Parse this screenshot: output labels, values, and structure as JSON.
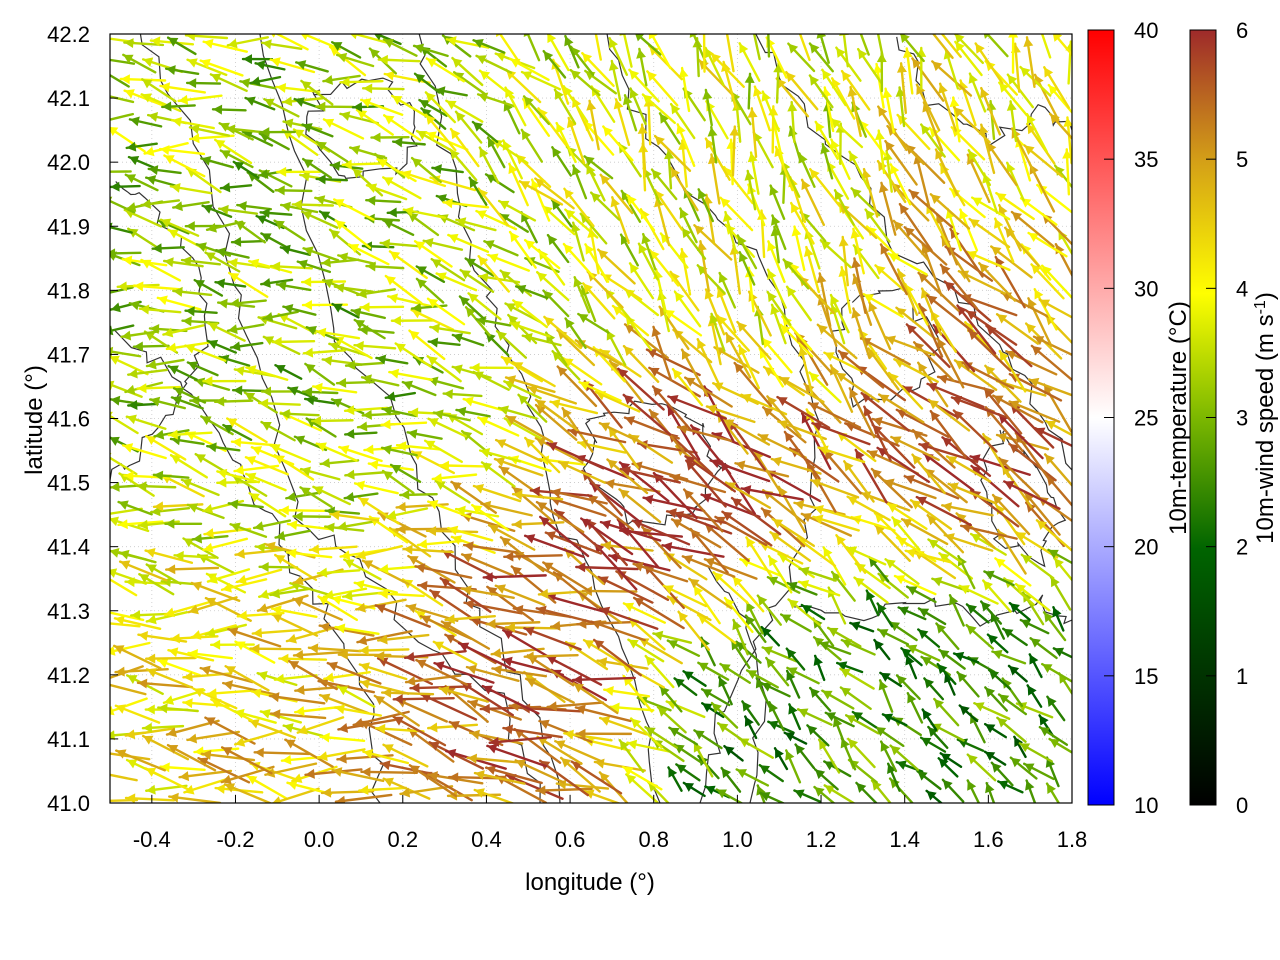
{
  "chart_data": {
    "type": "vector-field",
    "xlabel": "longitude (°)",
    "ylabel": "latitude (°)",
    "xlim": [
      -0.5,
      1.8
    ],
    "ylim": [
      41.0,
      42.2
    ],
    "x_ticks": [
      "-0.4",
      "-0.2",
      "0.0",
      "0.2",
      "0.4",
      "0.6",
      "0.8",
      "1.0",
      "1.2",
      "1.4",
      "1.6",
      "1.8"
    ],
    "y_ticks": [
      "41.0",
      "41.1",
      "41.2",
      "41.3",
      "41.4",
      "41.5",
      "41.6",
      "41.7",
      "41.8",
      "41.9",
      "42.0",
      "42.1",
      "42.2"
    ],
    "grid": true,
    "colorbars": [
      {
        "label": "10m-temperature (°C)",
        "range": [
          10,
          40
        ],
        "ticks": [
          "10",
          "15",
          "20",
          "25",
          "30",
          "35",
          "40"
        ],
        "colors": [
          "#0000ff",
          "#ffffff",
          "#ff0000"
        ]
      },
      {
        "label_main": "10m-wind speed (m s",
        "label_sup": "-1",
        "label_end": ")",
        "range": [
          0,
          6
        ],
        "ticks": [
          "0",
          "1",
          "2",
          "3",
          "4",
          "5",
          "6"
        ],
        "colors": [
          "#000000",
          "#006400",
          "#7cb800",
          "#ffff00",
          "#d4a017",
          "#9e2a2a"
        ]
      }
    ],
    "series": [
      {
        "type": "wind-arrows",
        "note_regions": [
          {
            "lon": [
              -0.5,
              0.3
            ],
            "lat": [
              41.0,
              41.4
            ],
            "speed": 4.5,
            "dir_deg": 175
          },
          {
            "lon": [
              0.2,
              0.6
            ],
            "lat": [
              41.1,
              41.4
            ],
            "speed": 5.8,
            "dir_deg": 160
          },
          {
            "lon": [
              0.6,
              1.1
            ],
            "lat": [
              41.4,
              41.65
            ],
            "speed": 5.9,
            "dir_deg": 150
          },
          {
            "lon": [
              1.3,
              1.7
            ],
            "lat": [
              41.5,
              41.95
            ],
            "speed": 5.7,
            "dir_deg": 150
          },
          {
            "lon": [
              1.0,
              1.75
            ],
            "lat": [
              41.0,
              41.3
            ],
            "speed": 2.5,
            "dir_deg": 135
          },
          {
            "lon": [
              -0.5,
              0.5
            ],
            "lat": [
              41.4,
              42.2
            ],
            "speed": 3.2,
            "dir_deg": 170
          },
          {
            "lon": [
              0.4,
              1.8
            ],
            "lat": [
              41.7,
              42.2
            ],
            "speed": 3.8,
            "dir_deg": 110
          }
        ]
      },
      {
        "type": "temperature-contours",
        "color": "#333333"
      }
    ]
  }
}
